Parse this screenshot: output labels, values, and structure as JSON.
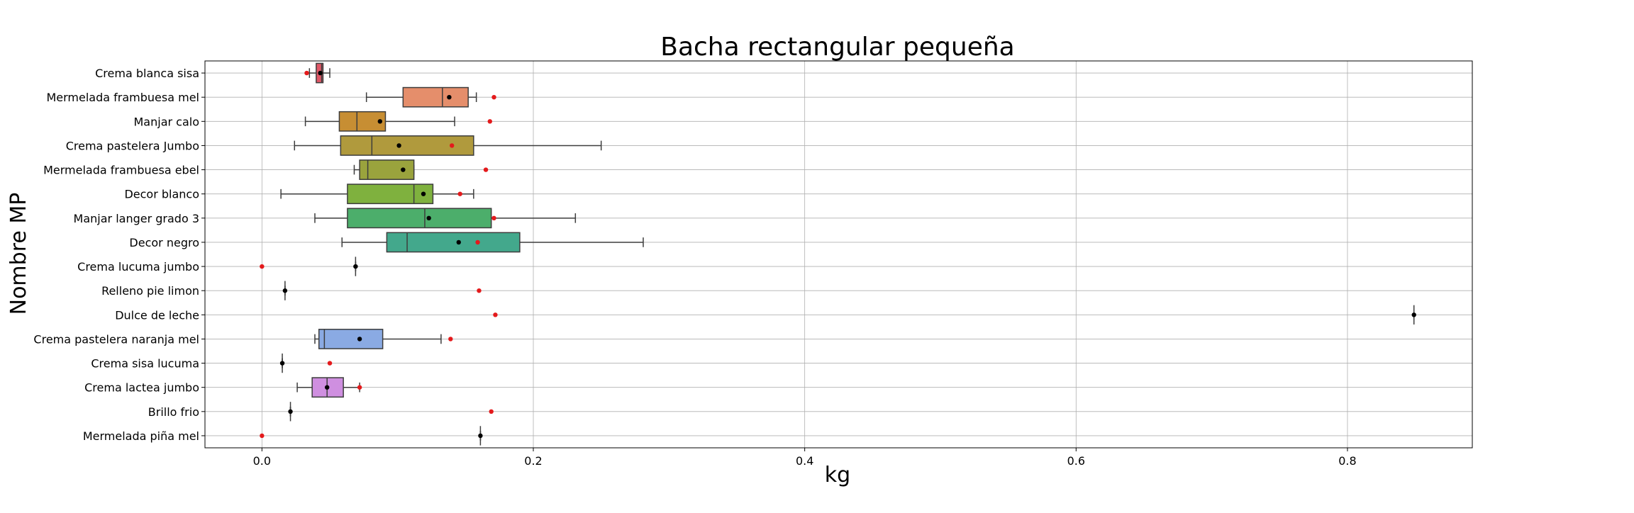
{
  "chart_data": {
    "type": "box",
    "title": "Bacha rectangular pequeña",
    "xlabel": "kg",
    "ylabel": "Nombre MP",
    "xlim": [
      -0.042,
      0.892
    ],
    "xticks": [
      0.0,
      0.2,
      0.4,
      0.6,
      0.8
    ],
    "xtick_labels": [
      "0.0",
      "0.2",
      "0.4",
      "0.6",
      "0.8"
    ],
    "grid": true,
    "categories": [
      {
        "name": "Crema blanca sisa",
        "whislo": 0.035,
        "q1": 0.04,
        "med": 0.044,
        "q3": 0.045,
        "whishi": 0.05,
        "mean": 0.043,
        "ref": 0.033,
        "color": "#e05767"
      },
      {
        "name": "Mermelada frambuesa mel",
        "whislo": 0.077,
        "q1": 0.104,
        "med": 0.133,
        "q3": 0.152,
        "whishi": 0.158,
        "mean": 0.138,
        "ref": 0.171,
        "color": "#e58e6b"
      },
      {
        "name": "Manjar calo",
        "whislo": 0.032,
        "q1": 0.057,
        "med": 0.07,
        "q3": 0.091,
        "whishi": 0.142,
        "mean": 0.087,
        "ref": 0.168,
        "color": "#c78e33"
      },
      {
        "name": "Crema pastelera Jumbo",
        "whislo": 0.024,
        "q1": 0.058,
        "med": 0.081,
        "q3": 0.156,
        "whishi": 0.25,
        "mean": 0.101,
        "ref": 0.14,
        "color": "#b09a3d"
      },
      {
        "name": "Mermelada frambuesa ebel",
        "whislo": 0.068,
        "q1": 0.072,
        "med": 0.078,
        "q3": 0.112,
        "whishi": 0.112,
        "mean": 0.104,
        "ref": 0.165,
        "color": "#9aa33d"
      },
      {
        "name": "Decor blanco",
        "whislo": 0.014,
        "q1": 0.063,
        "med": 0.112,
        "q3": 0.126,
        "whishi": 0.156,
        "mean": 0.119,
        "ref": 0.146,
        "color": "#7fb13e"
      },
      {
        "name": "Manjar langer grado 3",
        "whislo": 0.039,
        "q1": 0.063,
        "med": 0.12,
        "q3": 0.169,
        "whishi": 0.231,
        "mean": 0.123,
        "ref": 0.171,
        "color": "#4cae6b"
      },
      {
        "name": "Decor negro",
        "whislo": 0.059,
        "q1": 0.092,
        "med": 0.107,
        "q3": 0.19,
        "whishi": 0.281,
        "mean": 0.145,
        "ref": 0.159,
        "color": "#43a88c"
      },
      {
        "name": "Crema lucuma jumbo",
        "whislo": 0.069,
        "q1": 0.069,
        "med": 0.069,
        "q3": 0.069,
        "whishi": 0.069,
        "mean": 0.069,
        "ref": 0.0,
        "color": "#4aa39a"
      },
      {
        "name": "Relleno pie limon",
        "whislo": 0.017,
        "q1": 0.017,
        "med": 0.017,
        "q3": 0.017,
        "whishi": 0.017,
        "mean": 0.017,
        "ref": 0.16,
        "color": "#4da0ad"
      },
      {
        "name": "Dulce de leche",
        "whislo": 0.849,
        "q1": 0.849,
        "med": 0.849,
        "q3": 0.849,
        "whishi": 0.849,
        "mean": 0.849,
        "ref": 0.172,
        "color": "#5a9ec4"
      },
      {
        "name": "Crema pastelera naranja mel",
        "whislo": 0.039,
        "q1": 0.042,
        "med": 0.046,
        "q3": 0.089,
        "whishi": 0.132,
        "mean": 0.072,
        "ref": 0.139,
        "color": "#8aaae3"
      },
      {
        "name": "Crema sisa lucuma",
        "whislo": 0.015,
        "q1": 0.015,
        "med": 0.015,
        "q3": 0.015,
        "whishi": 0.015,
        "mean": 0.015,
        "ref": 0.05,
        "color": "#b496e0"
      },
      {
        "name": "Crema lactea jumbo",
        "whislo": 0.026,
        "q1": 0.037,
        "med": 0.048,
        "q3": 0.06,
        "whishi": 0.072,
        "mean": 0.048,
        "ref": 0.072,
        "color": "#cf8fe0"
      },
      {
        "name": "Brillo frio",
        "whislo": 0.021,
        "q1": 0.021,
        "med": 0.021,
        "q3": 0.021,
        "whishi": 0.021,
        "mean": 0.021,
        "ref": 0.169,
        "color": "#e08fc8"
      },
      {
        "name": "Mermelada piña mel",
        "whislo": 0.161,
        "q1": 0.161,
        "med": 0.161,
        "q3": 0.161,
        "whishi": 0.161,
        "mean": 0.161,
        "ref": 0.0,
        "color": "#e58fa8"
      }
    ],
    "mean_marker_color": "#000000",
    "ref_marker_color": "#e41a1c"
  }
}
